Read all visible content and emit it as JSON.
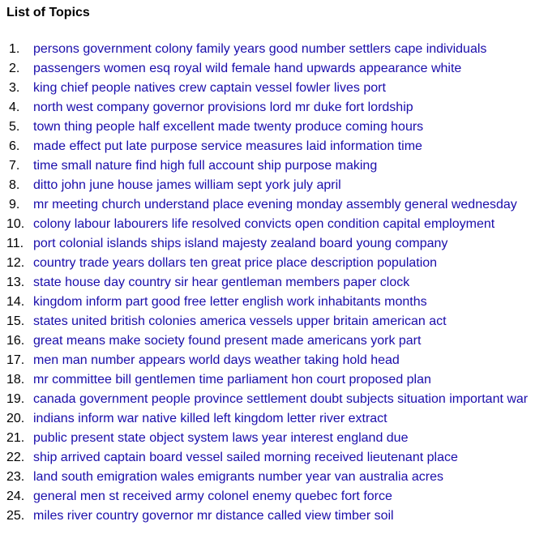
{
  "title": "List of Topics",
  "link_color": "#1a0dab",
  "topics": [
    {
      "number": "1.",
      "label": "persons government colony family years good number settlers cape individuals"
    },
    {
      "number": "2.",
      "label": "passengers women esq royal wild female hand upwards appearance white"
    },
    {
      "number": "3.",
      "label": "king chief people natives crew captain vessel fowler lives port"
    },
    {
      "number": "4.",
      "label": "north west company governor provisions lord mr duke fort lordship"
    },
    {
      "number": "5.",
      "label": "town thing people half excellent made twenty produce coming hours"
    },
    {
      "number": "6.",
      "label": "made effect put late purpose service measures laid information time"
    },
    {
      "number": "7.",
      "label": "time small nature find high full account ship purpose making"
    },
    {
      "number": "8.",
      "label": "ditto john june house james william sept york july april"
    },
    {
      "number": "9.",
      "label": "mr meeting church understand place evening monday assembly general wednesday"
    },
    {
      "number": "10.",
      "label": "colony labour labourers life resolved convicts open condition capital employment"
    },
    {
      "number": "11.",
      "label": "port colonial islands ships island majesty zealand board young company"
    },
    {
      "number": "12.",
      "label": "country trade years dollars ten great price place description population"
    },
    {
      "number": "13.",
      "label": "state house day country sir hear gentleman members paper clock"
    },
    {
      "number": "14.",
      "label": "kingdom inform part good free letter english work inhabitants months"
    },
    {
      "number": "15.",
      "label": "states united british colonies america vessels upper britain american act"
    },
    {
      "number": "16.",
      "label": "great means make society found present made americans york part"
    },
    {
      "number": "17.",
      "label": "men man number appears world days weather taking hold head"
    },
    {
      "number": "18.",
      "label": "mr committee bill gentlemen time parliament hon court proposed plan"
    },
    {
      "number": "19.",
      "label": "canada government people province settlement doubt subjects situation important war"
    },
    {
      "number": "20.",
      "label": "indians inform war native killed left kingdom letter river extract"
    },
    {
      "number": "21.",
      "label": "public present state object system laws year interest england due"
    },
    {
      "number": "22.",
      "label": "ship arrived captain board vessel sailed morning received lieutenant place"
    },
    {
      "number": "23.",
      "label": "land south emigration wales emigrants number year van australia acres"
    },
    {
      "number": "24.",
      "label": "general men st received army colonel enemy quebec fort force"
    },
    {
      "number": "25.",
      "label": "miles river country governor mr distance called view timber soil"
    }
  ]
}
